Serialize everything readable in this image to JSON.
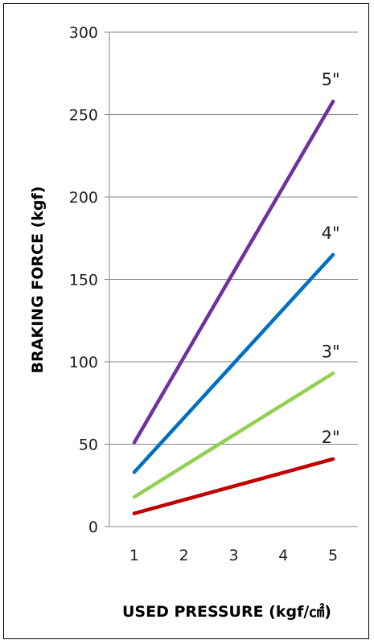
{
  "chart_data": {
    "type": "line",
    "title": "",
    "xlabel": "USED PRESSURE (kgf/㎠)",
    "ylabel": "BRAKING FORCE (kgf)",
    "x": [
      1,
      5
    ],
    "xticks": [
      "1",
      "2",
      "3",
      "4",
      "5"
    ],
    "yticks": [
      "0",
      "50",
      "100",
      "150",
      "200",
      "250",
      "300"
    ],
    "xlim": [
      0.5,
      5.5
    ],
    "ylim": [
      0,
      300
    ],
    "grid": "horizontal",
    "legend": "none",
    "series": [
      {
        "name": "2\"",
        "values": [
          8,
          41
        ],
        "color": "#c00000"
      },
      {
        "name": "3\"",
        "values": [
          18,
          93
        ],
        "color": "#92d050"
      },
      {
        "name": "4\"",
        "values": [
          33,
          165
        ],
        "color": "#0070c0"
      },
      {
        "name": "5\"",
        "values": [
          51,
          258
        ],
        "color": "#7030a0"
      }
    ]
  }
}
